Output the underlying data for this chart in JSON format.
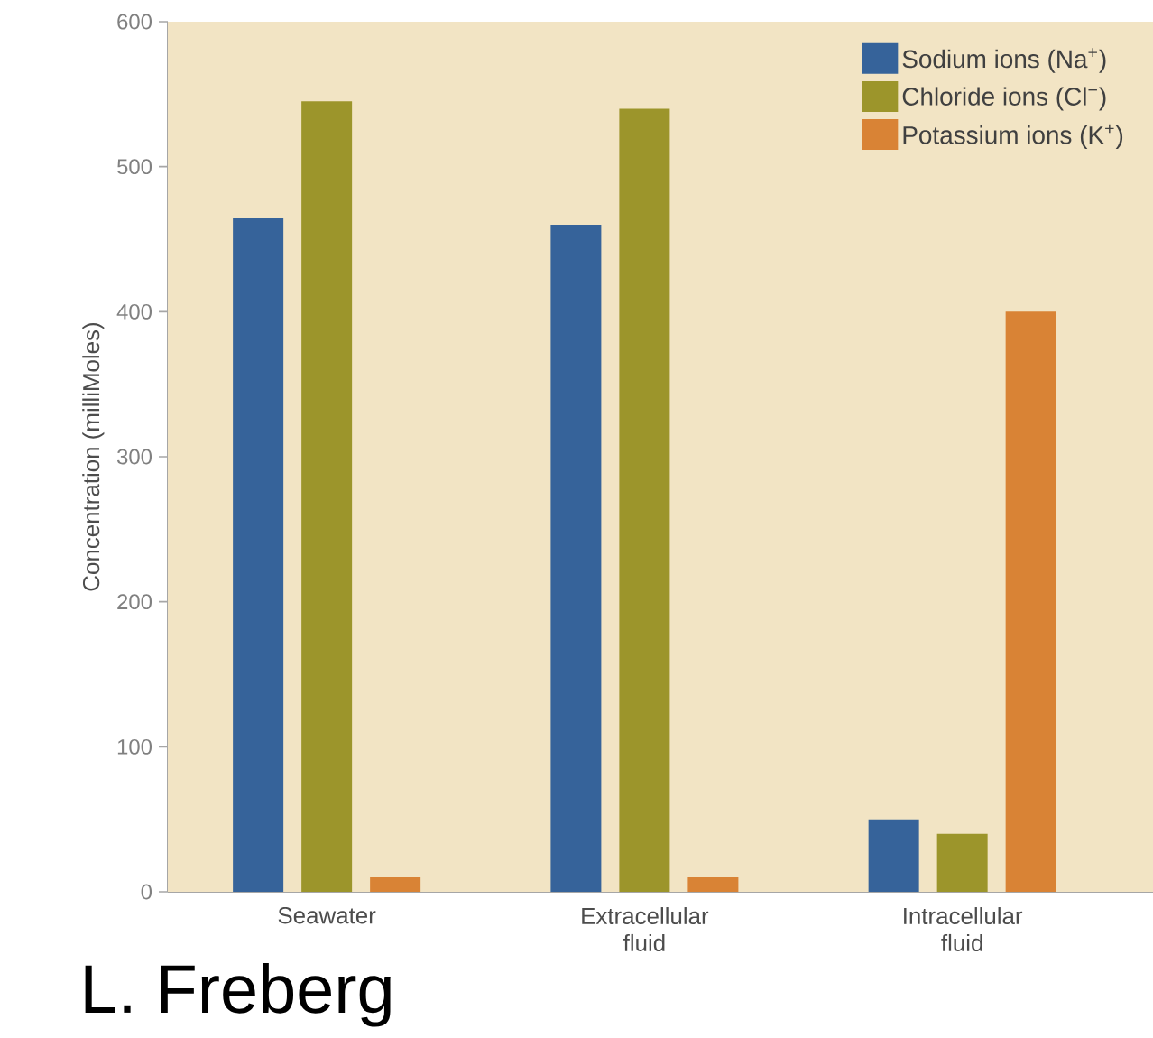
{
  "chart_data": {
    "type": "bar",
    "ylabel": "Concentration (milliMoles)",
    "categories": [
      "Seawater",
      "Extracellular fluid",
      "Intracellular fluid"
    ],
    "series": [
      {
        "name": "Sodium ions (Na$^{+}$)",
        "color": "#36639a",
        "values": [
          465,
          460,
          50
        ]
      },
      {
        "name": "Chloride ions (Cl$^{−}$)",
        "color": "#9c952b",
        "values": [
          545,
          540,
          40
        ]
      },
      {
        "name": "Potassium ions (K$^{+}$)",
        "color": "#d98335",
        "values": [
          10,
          10,
          400
        ]
      }
    ],
    "ylim": [
      0,
      600
    ],
    "yticks": [
      0,
      100,
      200,
      300,
      400,
      500,
      600
    ],
    "legend": "top right",
    "annotations": [
      "L. Freberg"
    ]
  }
}
